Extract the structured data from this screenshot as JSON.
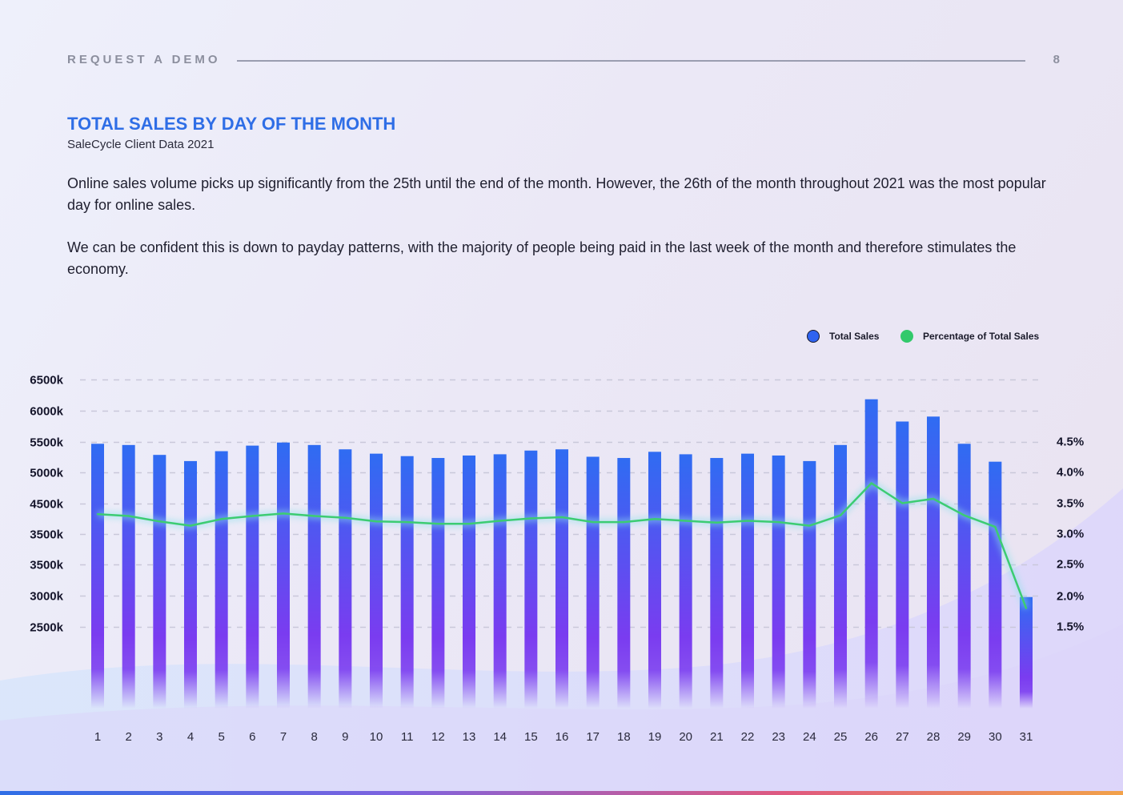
{
  "header": {
    "label": "REQUEST A DEMO",
    "page_number": "8"
  },
  "title": "TOTAL SALES BY DAY OF THE MONTH",
  "subtitle": "SaleCycle Client Data 2021",
  "paragraphs": [
    "Online sales volume picks up significantly from the 25th until the end of the month. However, the 26th of the month throughout 2021 was the most popular day for online sales.",
    "We can be confident this is down to payday patterns, with the majority of people being paid in the last week of the month and therefore stimulates the economy."
  ],
  "colors": {
    "accent": "#2f6ee6",
    "bar_top": "#2f6cf2",
    "bar_bottom": "#7a3cf0",
    "line": "#3ccc72"
  },
  "chart_data": {
    "type": "bar",
    "legend": [
      {
        "name": "Total Sales",
        "color": "#2f63f0",
        "icon": "blue-circle-icon"
      },
      {
        "name": "Percentage of Total Sales",
        "color": "#32c96b",
        "icon": "green-circle-icon"
      }
    ],
    "legend_position": "top-right",
    "categories": [
      "1",
      "2",
      "3",
      "4",
      "5",
      "6",
      "7",
      "8",
      "9",
      "10",
      "11",
      "12",
      "13",
      "14",
      "15",
      "16",
      "17",
      "18",
      "19",
      "20",
      "21",
      "22",
      "23",
      "24",
      "25",
      "26",
      "27",
      "28",
      "29",
      "30",
      "31"
    ],
    "left_axis_ticks": [
      "6500k",
      "6000k",
      "5500k",
      "5000k",
      "4500k",
      "3500k",
      "3500k",
      "3000k",
      "2500k"
    ],
    "right_axis_ticks": [
      "4.5%",
      "4.0%",
      "3.5%",
      "3.0%",
      "2.5%",
      "2.0%",
      "1.5%"
    ],
    "series": [
      {
        "name": "Total Sales",
        "type": "bar",
        "unit": "k",
        "values": [
          5460,
          5440,
          5280,
          5180,
          5340,
          5430,
          5480,
          5440,
          5370,
          5300,
          5260,
          5230,
          5270,
          5290,
          5350,
          5370,
          5250,
          5230,
          5330,
          5290,
          5230,
          5300,
          5270,
          5180,
          5440,
          6180,
          5820,
          5900,
          5460,
          5170,
          2980
        ]
      },
      {
        "name": "Percentage of Total Sales",
        "type": "line",
        "unit": "%",
        "values": [
          3.32,
          3.29,
          3.2,
          3.13,
          3.24,
          3.29,
          3.33,
          3.29,
          3.26,
          3.2,
          3.19,
          3.16,
          3.16,
          3.21,
          3.25,
          3.27,
          3.19,
          3.19,
          3.24,
          3.21,
          3.18,
          3.21,
          3.19,
          3.13,
          3.3,
          3.82,
          3.5,
          3.57,
          3.3,
          3.11,
          1.8
        ]
      }
    ],
    "ylim_left": [
      2500,
      6500
    ],
    "ylim_right": [
      1.5,
      4.5
    ],
    "grid": true
  }
}
